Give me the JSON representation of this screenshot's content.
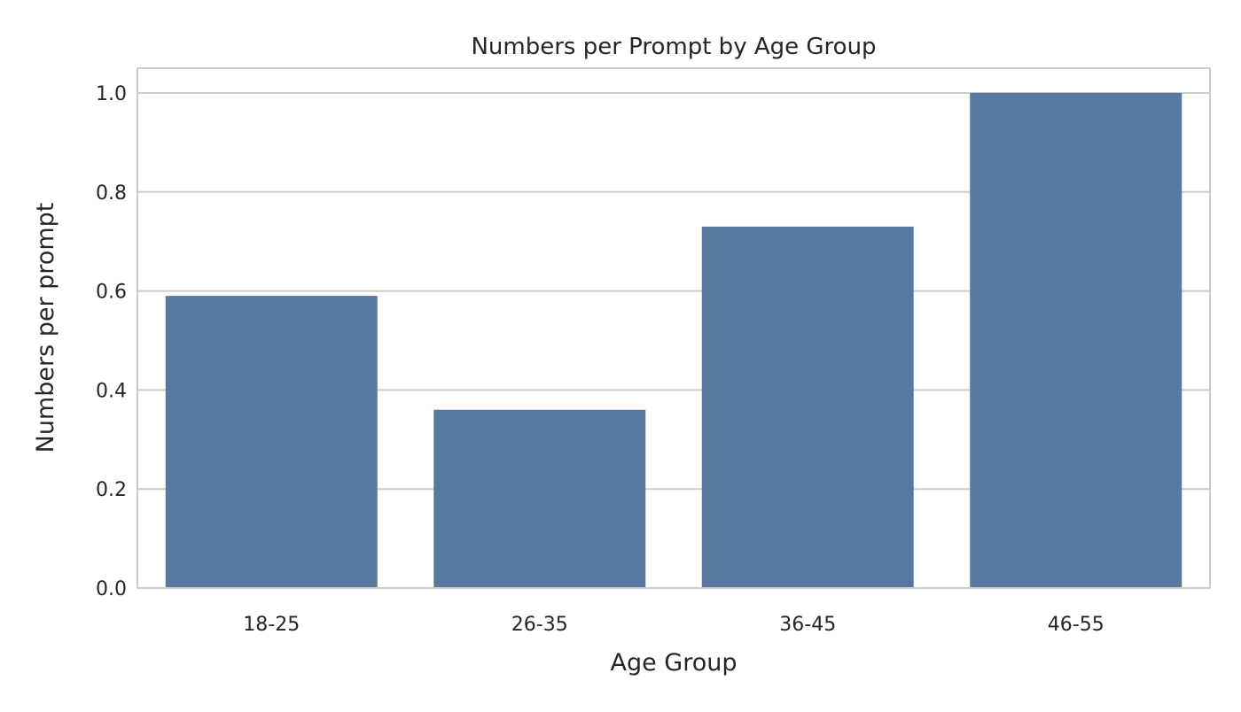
{
  "chart_data": {
    "type": "bar",
    "title": "Numbers per Prompt by Age Group",
    "xlabel": "Age Group",
    "ylabel": "Numbers per prompt",
    "categories": [
      "18-25",
      "26-35",
      "36-45",
      "46-55"
    ],
    "values": [
      0.59,
      0.36,
      0.73,
      1.0
    ],
    "ylim": [
      0,
      1.05
    ],
    "yticks": [
      0.0,
      0.2,
      0.4,
      0.6,
      0.8,
      1.0
    ],
    "ytick_labels": [
      "0.0",
      "0.2",
      "0.4",
      "0.6",
      "0.8",
      "1.0"
    ],
    "grid": "horizontal",
    "legend": "none",
    "bar_color": "#5878a0",
    "grid_color": "#cccccc",
    "frame_color": "#cccccc"
  }
}
